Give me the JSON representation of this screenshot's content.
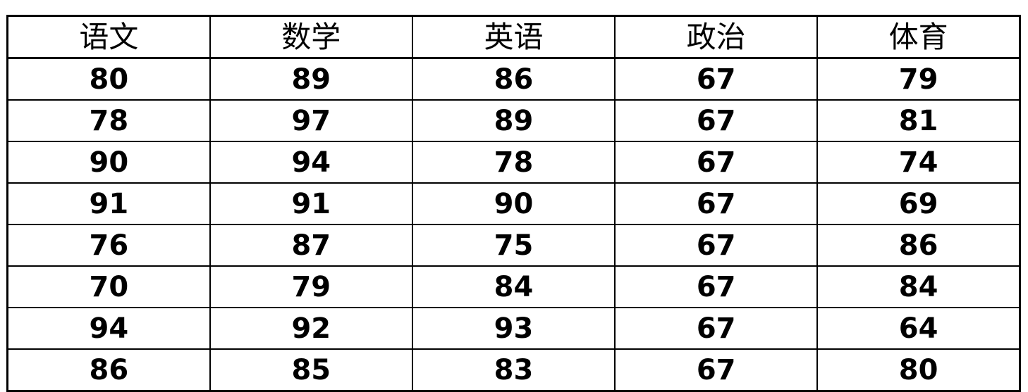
{
  "colors": {
    "background": "#ffffff",
    "border": "#000000",
    "text": "#000000"
  },
  "table": {
    "columns": [
      "语文",
      "数学",
      "英语",
      "政治",
      "体育"
    ],
    "rows": [
      [
        "80",
        "89",
        "86",
        "67",
        "79"
      ],
      [
        "78",
        "97",
        "89",
        "67",
        "81"
      ],
      [
        "90",
        "94",
        "78",
        "67",
        "74"
      ],
      [
        "91",
        "91",
        "90",
        "67",
        "69"
      ],
      [
        "76",
        "87",
        "75",
        "67",
        "86"
      ],
      [
        "70",
        "79",
        "84",
        "67",
        "84"
      ],
      [
        "94",
        "92",
        "93",
        "67",
        "64"
      ],
      [
        "86",
        "85",
        "83",
        "67",
        "80"
      ]
    ]
  },
  "chart_data": {
    "type": "table",
    "columns": [
      "语文",
      "数学",
      "英语",
      "政治",
      "体育"
    ],
    "rows": [
      [
        80,
        89,
        86,
        67,
        79
      ],
      [
        78,
        97,
        89,
        67,
        81
      ],
      [
        90,
        94,
        78,
        67,
        74
      ],
      [
        91,
        91,
        90,
        67,
        69
      ],
      [
        76,
        87,
        75,
        67,
        86
      ],
      [
        70,
        79,
        84,
        67,
        84
      ],
      [
        94,
        92,
        93,
        67,
        64
      ],
      [
        86,
        85,
        83,
        67,
        80
      ]
    ]
  }
}
